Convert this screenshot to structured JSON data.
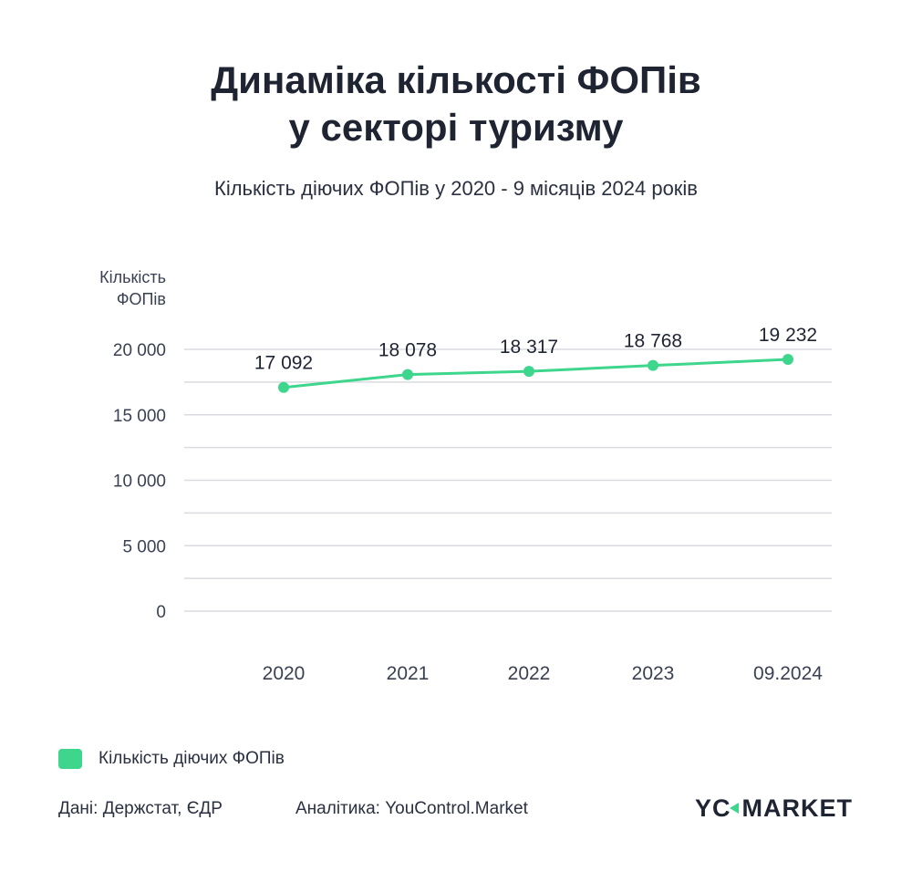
{
  "title_line1": "Динаміка кількості ФОПів",
  "title_line2": "у секторі туризму",
  "subtitle": "Кількість діючих ФОПів у 2020 - 9 місяців 2024 років",
  "chart_data": {
    "type": "line",
    "categories": [
      "2020",
      "2021",
      "2022",
      "2023",
      "09.2024"
    ],
    "series": [
      {
        "name": "Кількість діючих ФОПів",
        "values": [
          17092,
          18078,
          18317,
          18768,
          19232
        ],
        "labels": [
          "17 092",
          "18 078",
          "18 317",
          "18 768",
          "19 232"
        ],
        "color": "#3dd68c"
      }
    ],
    "ylabel_line1": "Кількість",
    "ylabel_line2": "ФОПів",
    "xlabel": "",
    "ylim": [
      0,
      20000
    ],
    "yticks": [
      0,
      5000,
      10000,
      15000,
      20000
    ],
    "ytick_labels": [
      "0",
      "5 000",
      "10 000",
      "15 000",
      "20 000"
    ],
    "grid": true,
    "legend_position": "bottom-left"
  },
  "legend_label": "Кількість діючих ФОПів",
  "footer": {
    "source": "Дані: Держстат, ЄДР",
    "analytics": "Аналітика: YouControl.Market"
  },
  "logo": {
    "part1": "YC",
    "part2": "MARKET"
  },
  "colors": {
    "accent": "#3dd68c",
    "grid": "#d9dbe0",
    "text": "#1f2433"
  }
}
